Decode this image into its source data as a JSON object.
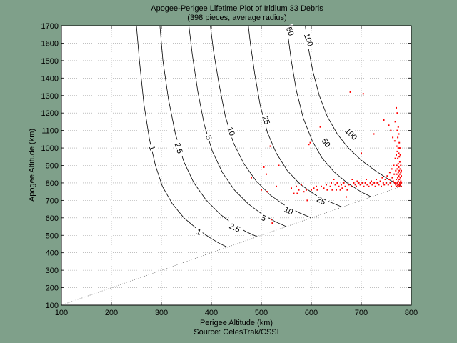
{
  "chart_data": {
    "type": "scatter",
    "title": "Apogee-Perigee Lifetime Plot of Iridium 33 Debris",
    "subtitle": "(398 pieces, average radius)",
    "xlabel": "Perigee Altitude (km)",
    "ylabel": "Apogee Altitude (km)",
    "source": "Source: CelesTrak/CSSI",
    "xlim": [
      100,
      800
    ],
    "ylim": [
      100,
      1700
    ],
    "xticks": [
      "100",
      "200",
      "300",
      "400",
      "500",
      "600",
      "700",
      "800"
    ],
    "yticks": [
      "100",
      "200",
      "300",
      "400",
      "500",
      "600",
      "700",
      "800",
      "900",
      "1000",
      "1100",
      "1200",
      "1300",
      "1400",
      "1500",
      "1600",
      "1700"
    ],
    "grid": true,
    "reference_line": {
      "x": [
        100,
        780
      ],
      "y": [
        100,
        780
      ]
    },
    "contours": [
      {
        "label": "1",
        "points": [
          [
            432,
            432
          ],
          [
            415,
            455
          ],
          [
            395,
            490
          ],
          [
            370,
            540
          ],
          [
            345,
            600
          ],
          [
            322,
            680
          ],
          [
            302,
            780
          ],
          [
            288,
            900
          ],
          [
            276,
            1050
          ],
          [
            265,
            1250
          ],
          [
            256,
            1500
          ],
          [
            250,
            1700
          ]
        ],
        "labels": [
          {
            "text": "1",
            "at": [
              282,
              1000
            ],
            "rot": 72
          },
          {
            "text": "1",
            "at": [
              375,
              520
            ],
            "rot": 22
          }
        ]
      },
      {
        "label": "2.5",
        "points": [
          [
            492,
            492
          ],
          [
            470,
            520
          ],
          [
            445,
            560
          ],
          [
            418,
            620
          ],
          [
            390,
            700
          ],
          [
            365,
            800
          ],
          [
            345,
            920
          ],
          [
            328,
            1080
          ],
          [
            314,
            1280
          ],
          [
            303,
            1500
          ],
          [
            297,
            1700
          ]
        ],
        "labels": [
          {
            "text": "2.5",
            "at": [
              335,
              1000
            ],
            "rot": 72
          },
          {
            "text": "2.5",
            "at": [
              447,
              545
            ],
            "rot": 25
          }
        ]
      },
      {
        "label": "5",
        "points": [
          [
            550,
            550
          ],
          [
            528,
            578
          ],
          [
            502,
            620
          ],
          [
            474,
            680
          ],
          [
            446,
            760
          ],
          [
            422,
            860
          ],
          [
            402,
            980
          ],
          [
            386,
            1130
          ],
          [
            373,
            1320
          ],
          [
            362,
            1530
          ],
          [
            355,
            1700
          ]
        ],
        "labels": [
          {
            "text": "5",
            "at": [
              395,
              1060
            ],
            "rot": 72
          },
          {
            "text": "5",
            "at": [
              505,
              600
            ],
            "rot": 25
          }
        ]
      },
      {
        "label": "10",
        "points": [
          [
            600,
            600
          ],
          [
            577,
            628
          ],
          [
            548,
            670
          ],
          [
            518,
            730
          ],
          [
            490,
            810
          ],
          [
            465,
            910
          ],
          [
            444,
            1030
          ],
          [
            428,
            1180
          ],
          [
            415,
            1370
          ],
          [
            404,
            1560
          ],
          [
            398,
            1700
          ]
        ],
        "labels": [
          {
            "text": "10",
            "at": [
              440,
              1095
            ],
            "rot": 72
          },
          {
            "text": "10",
            "at": [
              555,
              642
            ],
            "rot": 25
          }
        ]
      },
      {
        "label": "25",
        "points": [
          [
            662,
            662
          ],
          [
            638,
            690
          ],
          [
            608,
            732
          ],
          [
            578,
            792
          ],
          [
            552,
            870
          ],
          [
            530,
            970
          ],
          [
            512,
            1090
          ],
          [
            498,
            1240
          ],
          [
            487,
            1420
          ],
          [
            478,
            1600
          ],
          [
            474,
            1700
          ]
        ],
        "labels": [
          {
            "text": "25",
            "at": [
              510,
              1160
            ],
            "rot": 70
          },
          {
            "text": "25",
            "at": [
              620,
              700
            ],
            "rot": 28
          }
        ]
      },
      {
        "label": "50",
        "points": [
          [
            720,
            720
          ],
          [
            698,
            752
          ],
          [
            672,
            800
          ],
          [
            646,
            862
          ],
          [
            622,
            940
          ],
          [
            602,
            1040
          ],
          [
            584,
            1170
          ],
          [
            570,
            1330
          ],
          [
            560,
            1500
          ],
          [
            553,
            1650
          ],
          [
            550,
            1700
          ]
        ],
        "labels": [
          {
            "text": "50",
            "at": [
              630,
              1030
            ],
            "rot": 55
          },
          {
            "text": "50",
            "at": [
              558,
              1668
            ],
            "rot": 70
          }
        ]
      },
      {
        "label": "100",
        "points": [
          [
            780,
            780
          ],
          [
            755,
            820
          ],
          [
            728,
            870
          ],
          [
            700,
            930
          ],
          [
            674,
            1000
          ],
          [
            652,
            1080
          ],
          [
            632,
            1180
          ],
          [
            616,
            1300
          ],
          [
            603,
            1440
          ],
          [
            593,
            1590
          ],
          [
            588,
            1700
          ]
        ],
        "labels": [
          {
            "text": "100",
            "at": [
              680,
              1080
            ],
            "rot": 45
          },
          {
            "text": "100",
            "at": [
              595,
              1620
            ],
            "rot": 70
          }
        ]
      }
    ],
    "series": [
      {
        "points": [
          [
            480,
            830
          ],
          [
            500,
            760
          ],
          [
            505,
            890
          ],
          [
            510,
            850
          ],
          [
            512,
            750
          ],
          [
            518,
            1010
          ],
          [
            520,
            590
          ],
          [
            522,
            570
          ],
          [
            530,
            780
          ],
          [
            535,
            900
          ],
          [
            560,
            770
          ],
          [
            565,
            740
          ],
          [
            570,
            780
          ],
          [
            572,
            740
          ],
          [
            575,
            760
          ],
          [
            580,
            790
          ],
          [
            585,
            750
          ],
          [
            590,
            760
          ],
          [
            592,
            700
          ],
          [
            595,
            1020
          ],
          [
            598,
            1030
          ],
          [
            600,
            760
          ],
          [
            605,
            770
          ],
          [
            610,
            780
          ],
          [
            612,
            760
          ],
          [
            618,
            1120
          ],
          [
            620,
            780
          ],
          [
            625,
            770
          ],
          [
            630,
            790
          ],
          [
            632,
            760
          ],
          [
            638,
            780
          ],
          [
            640,
            800
          ],
          [
            642,
            760
          ],
          [
            645,
            820
          ],
          [
            648,
            790
          ],
          [
            650,
            760
          ],
          [
            652,
            800
          ],
          [
            655,
            780
          ],
          [
            658,
            760
          ],
          [
            660,
            790
          ],
          [
            662,
            770
          ],
          [
            665,
            800
          ],
          [
            668,
            780
          ],
          [
            670,
            720
          ],
          [
            672,
            760
          ],
          [
            675,
            790
          ],
          [
            678,
            1320
          ],
          [
            680,
            780
          ],
          [
            682,
            820
          ],
          [
            685,
            800
          ],
          [
            688,
            790
          ],
          [
            690,
            780
          ],
          [
            692,
            810
          ],
          [
            695,
            800
          ],
          [
            698,
            790
          ],
          [
            700,
            970
          ],
          [
            702,
            800
          ],
          [
            704,
            1310
          ],
          [
            705,
            780
          ],
          [
            708,
            800
          ],
          [
            710,
            820
          ],
          [
            712,
            790
          ],
          [
            715,
            780
          ],
          [
            718,
            800
          ],
          [
            720,
            810
          ],
          [
            722,
            790
          ],
          [
            725,
            1080
          ],
          [
            726,
            800
          ],
          [
            728,
            780
          ],
          [
            730,
            820
          ],
          [
            732,
            800
          ],
          [
            735,
            790
          ],
          [
            738,
            810
          ],
          [
            740,
            780
          ],
          [
            742,
            830
          ],
          [
            744,
            800
          ],
          [
            745,
            1160
          ],
          [
            746,
            790
          ],
          [
            748,
            820
          ],
          [
            750,
            800
          ],
          [
            752,
            840
          ],
          [
            754,
            790
          ],
          [
            755,
            1130
          ],
          [
            756,
            820
          ],
          [
            757,
            860
          ],
          [
            758,
            800
          ],
          [
            759,
            1100
          ],
          [
            760,
            780
          ],
          [
            761,
            880
          ],
          [
            762,
            830
          ],
          [
            763,
            1060
          ],
          [
            764,
            810
          ],
          [
            765,
            900
          ],
          [
            766,
            850
          ],
          [
            767,
            1040
          ],
          [
            767,
            800
          ],
          [
            768,
            1150
          ],
          [
            768,
            940
          ],
          [
            769,
            870
          ],
          [
            769,
            790
          ],
          [
            770,
            1230
          ],
          [
            770,
            960
          ],
          [
            770,
            820
          ],
          [
            770,
            780
          ],
          [
            771,
            1010
          ],
          [
            771,
            900
          ],
          [
            771,
            850
          ],
          [
            772,
            1200
          ],
          [
            772,
            1100
          ],
          [
            772,
            980
          ],
          [
            772,
            880
          ],
          [
            772,
            800
          ],
          [
            773,
            1060
          ],
          [
            773,
            940
          ],
          [
            773,
            830
          ],
          [
            773,
            785
          ],
          [
            774,
            1120
          ],
          [
            774,
            1000
          ],
          [
            774,
            910
          ],
          [
            774,
            860
          ],
          [
            774,
            810
          ],
          [
            775,
            1080
          ],
          [
            775,
            970
          ],
          [
            775,
            890
          ],
          [
            775,
            840
          ],
          [
            775,
            790
          ],
          [
            776,
            1030
          ],
          [
            776,
            950
          ],
          [
            776,
            870
          ],
          [
            776,
            820
          ],
          [
            776,
            780
          ],
          [
            777,
            1000
          ],
          [
            777,
            920
          ],
          [
            777,
            850
          ],
          [
            777,
            800
          ],
          [
            778,
            960
          ],
          [
            778,
            880
          ],
          [
            778,
            830
          ],
          [
            778,
            790
          ],
          [
            779,
            900
          ],
          [
            779,
            860
          ],
          [
            779,
            810
          ],
          [
            780,
            870
          ],
          [
            780,
            840
          ],
          [
            780,
            800
          ],
          [
            780,
            780
          ]
        ]
      }
    ]
  }
}
